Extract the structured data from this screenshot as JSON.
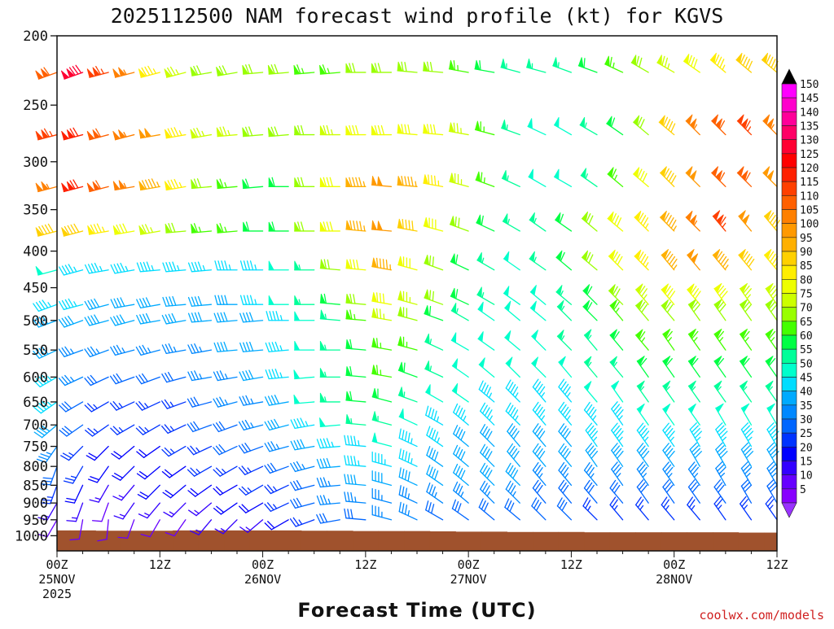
{
  "chart_data": {
    "type": "wind-barb profile",
    "title": "2025112500 NAM forecast wind profile (kt) for KGVS",
    "xlabel": "Forecast Time (UTC)",
    "ylabel": "",
    "credit": "coolwx.com/models",
    "y_scale": "log-pressure (hPa), inverted",
    "ylim": [
      1050,
      200
    ],
    "y_ticks": [
      "200",
      "250",
      "300",
      "350",
      "400",
      "450",
      "500",
      "550",
      "600",
      "650",
      "700",
      "750",
      "800",
      "850",
      "900",
      "950",
      "1000"
    ],
    "x_range_hours": [
      0,
      84
    ],
    "x_ticks": [
      {
        "hour": 0,
        "lines": [
          "00Z",
          "25NOV",
          "2025"
        ]
      },
      {
        "hour": 12,
        "lines": [
          "12Z"
        ]
      },
      {
        "hour": 24,
        "lines": [
          "00Z",
          "26NOV"
        ]
      },
      {
        "hour": 36,
        "lines": [
          "12Z"
        ]
      },
      {
        "hour": 48,
        "lines": [
          "00Z",
          "27NOV"
        ]
      },
      {
        "hour": 60,
        "lines": [
          "12Z"
        ]
      },
      {
        "hour": 72,
        "lines": [
          "00Z",
          "28NOV"
        ]
      },
      {
        "hour": 84,
        "lines": [
          "12Z"
        ]
      }
    ],
    "colorbar": {
      "label_values": [
        150,
        145,
        140,
        135,
        130,
        125,
        120,
        115,
        110,
        105,
        100,
        95,
        90,
        85,
        80,
        75,
        70,
        65,
        60,
        55,
        50,
        45,
        40,
        35,
        30,
        25,
        20,
        15,
        10,
        5
      ],
      "colors": [
        "#ff00ff",
        "#ff00cc",
        "#ff0099",
        "#ff0066",
        "#ff0033",
        "#ff0000",
        "#ff2000",
        "#ff4000",
        "#ff6000",
        "#ff8000",
        "#ff9900",
        "#ffb000",
        "#ffd000",
        "#ffee00",
        "#eeff00",
        "#ccff00",
        "#99ff00",
        "#44ff00",
        "#00ff44",
        "#00ff99",
        "#00ffcc",
        "#00ddff",
        "#00aaff",
        "#0088ff",
        "#0066ff",
        "#0033ff",
        "#0000ff",
        "#3300ff",
        "#6600ff",
        "#8800ff"
      ],
      "top_arrow_color": "#000000",
      "bottom_arrow_color": "#9933ff"
    },
    "terrain_color": "#a0522d",
    "levels_hpa": [
      225,
      275,
      325,
      375,
      425,
      475,
      500,
      550,
      600,
      650,
      700,
      750,
      800,
      850,
      900,
      950
    ],
    "times_hours": [
      0,
      3,
      6,
      9,
      12,
      15,
      18,
      21,
      24,
      27,
      30,
      33,
      36,
      39,
      42,
      45,
      48,
      51,
      54,
      57,
      60,
      63,
      66,
      69,
      72,
      75,
      78,
      81,
      84
    ],
    "surface_pressure_by_time": [
      983,
      983,
      984,
      984,
      984,
      983,
      983,
      983,
      983,
      983,
      984,
      984,
      985,
      985,
      985,
      986,
      987,
      987,
      988,
      988,
      988,
      989,
      989,
      989,
      989,
      989,
      989,
      990,
      990
    ],
    "wind_from_dir_by_level": {
      "225": [
        250,
        250,
        255,
        255,
        255,
        255,
        260,
        260,
        265,
        265,
        265,
        265,
        270,
        270,
        275,
        275,
        280,
        280,
        285,
        285,
        290,
        290,
        295,
        300,
        300,
        305,
        310,
        310,
        310
      ],
      "275": [
        255,
        255,
        255,
        255,
        260,
        260,
        260,
        265,
        265,
        265,
        270,
        270,
        270,
        270,
        275,
        275,
        280,
        285,
        290,
        295,
        300,
        300,
        305,
        310,
        310,
        315,
        315,
        315,
        315
      ],
      "325": [
        255,
        255,
        255,
        260,
        260,
        260,
        265,
        265,
        265,
        270,
        270,
        270,
        270,
        275,
        275,
        280,
        285,
        290,
        295,
        300,
        300,
        305,
        310,
        310,
        315,
        315,
        315,
        315,
        315
      ],
      "375": [
        255,
        255,
        260,
        260,
        260,
        265,
        265,
        265,
        270,
        270,
        270,
        270,
        275,
        275,
        280,
        285,
        290,
        295,
        300,
        305,
        305,
        310,
        310,
        315,
        315,
        315,
        320,
        320,
        320
      ],
      "425": [
        255,
        255,
        260,
        260,
        265,
        265,
        265,
        270,
        270,
        270,
        270,
        275,
        275,
        280,
        285,
        290,
        295,
        300,
        305,
        305,
        310,
        310,
        315,
        315,
        320,
        320,
        320,
        320,
        320
      ],
      "475": [
        250,
        255,
        255,
        260,
        260,
        265,
        265,
        270,
        270,
        270,
        270,
        275,
        275,
        280,
        285,
        290,
        295,
        300,
        305,
        310,
        310,
        315,
        315,
        320,
        320,
        320,
        325,
        325,
        325
      ],
      "500": [
        250,
        250,
        255,
        255,
        260,
        260,
        265,
        265,
        265,
        270,
        270,
        275,
        275,
        280,
        285,
        290,
        300,
        305,
        310,
        310,
        315,
        315,
        320,
        320,
        320,
        325,
        325,
        325,
        325
      ],
      "550": [
        245,
        250,
        250,
        255,
        255,
        260,
        260,
        265,
        265,
        265,
        270,
        270,
        275,
        280,
        285,
        295,
        300,
        305,
        310,
        315,
        315,
        320,
        320,
        320,
        325,
        325,
        325,
        325,
        325
      ],
      "600": [
        240,
        245,
        245,
        250,
        250,
        255,
        260,
        260,
        260,
        265,
        265,
        270,
        275,
        280,
        290,
        295,
        305,
        310,
        315,
        315,
        320,
        320,
        320,
        325,
        325,
        325,
        325,
        325,
        325
      ],
      "650": [
        235,
        240,
        240,
        245,
        245,
        250,
        255,
        255,
        260,
        260,
        265,
        270,
        275,
        285,
        290,
        300,
        305,
        310,
        315,
        320,
        320,
        320,
        325,
        325,
        325,
        325,
        325,
        325,
        325
      ],
      "700": [
        230,
        235,
        235,
        240,
        240,
        245,
        250,
        250,
        255,
        255,
        260,
        265,
        275,
        285,
        295,
        300,
        310,
        315,
        315,
        320,
        320,
        320,
        325,
        325,
        325,
        325,
        330,
        330,
        330
      ],
      "750": [
        215,
        225,
        225,
        230,
        235,
        240,
        245,
        245,
        250,
        255,
        260,
        265,
        275,
        285,
        295,
        305,
        310,
        315,
        320,
        320,
        320,
        325,
        325,
        325,
        325,
        330,
        330,
        330,
        330
      ],
      "800": [
        200,
        210,
        215,
        225,
        230,
        235,
        240,
        240,
        245,
        250,
        255,
        265,
        275,
        285,
        295,
        305,
        310,
        315,
        320,
        320,
        320,
        325,
        325,
        325,
        325,
        330,
        330,
        330,
        330
      ],
      "850": [
        200,
        205,
        210,
        220,
        225,
        230,
        235,
        240,
        240,
        245,
        255,
        265,
        275,
        285,
        295,
        305,
        310,
        315,
        315,
        320,
        320,
        320,
        325,
        325,
        325,
        325,
        330,
        330,
        330
      ],
      "900": [
        210,
        200,
        200,
        215,
        220,
        225,
        230,
        235,
        240,
        245,
        255,
        265,
        275,
        285,
        295,
        305,
        310,
        315,
        315,
        320,
        320,
        320,
        320,
        325,
        325,
        325,
        325,
        330,
        330
      ],
      "950": [
        210,
        190,
        185,
        200,
        210,
        215,
        220,
        225,
        230,
        240,
        250,
        260,
        275,
        285,
        295,
        300,
        305,
        310,
        310,
        315,
        315,
        315,
        320,
        320,
        320,
        320,
        325,
        325,
        325
      ]
    },
    "wind_speed_kt_by_level": {
      "225": [
        110,
        130,
        115,
        105,
        85,
        75,
        70,
        70,
        70,
        70,
        65,
        65,
        70,
        70,
        70,
        70,
        65,
        60,
        55,
        55,
        55,
        60,
        65,
        70,
        75,
        80,
        85,
        90,
        90
      ],
      "275": [
        115,
        120,
        110,
        105,
        100,
        85,
        75,
        75,
        70,
        70,
        70,
        75,
        80,
        80,
        80,
        80,
        75,
        65,
        55,
        50,
        50,
        55,
        60,
        70,
        90,
        105,
        110,
        115,
        105
      ],
      "325": [
        105,
        120,
        110,
        105,
        95,
        85,
        70,
        65,
        60,
        60,
        70,
        80,
        95,
        100,
        95,
        85,
        75,
        65,
        55,
        50,
        50,
        55,
        65,
        80,
        90,
        100,
        110,
        110,
        100
      ],
      "375": [
        90,
        90,
        85,
        80,
        75,
        70,
        65,
        65,
        60,
        60,
        70,
        80,
        95,
        100,
        90,
        80,
        70,
        60,
        55,
        55,
        60,
        70,
        80,
        85,
        95,
        105,
        115,
        100,
        90
      ],
      "425": [
        50,
        45,
        45,
        45,
        45,
        45,
        45,
        45,
        45,
        50,
        55,
        70,
        80,
        95,
        80,
        70,
        60,
        55,
        50,
        55,
        60,
        70,
        80,
        85,
        95,
        100,
        95,
        90,
        85
      ],
      "475": [
        45,
        45,
        40,
        40,
        40,
        40,
        40,
        40,
        45,
        50,
        55,
        60,
        70,
        80,
        75,
        70,
        60,
        55,
        50,
        50,
        55,
        60,
        70,
        75,
        80,
        80,
        80,
        75,
        75
      ],
      "500": [
        40,
        40,
        40,
        40,
        40,
        40,
        40,
        40,
        40,
        45,
        50,
        55,
        65,
        75,
        70,
        60,
        55,
        50,
        50,
        50,
        55,
        60,
        65,
        70,
        70,
        70,
        70,
        70,
        70
      ],
      "550": [
        40,
        35,
        35,
        35,
        35,
        35,
        35,
        40,
        40,
        45,
        50,
        55,
        60,
        65,
        65,
        55,
        50,
        50,
        50,
        50,
        55,
        55,
        60,
        65,
        65,
        65,
        65,
        65,
        65
      ],
      "600": [
        45,
        35,
        30,
        30,
        30,
        30,
        35,
        35,
        40,
        45,
        50,
        55,
        60,
        65,
        60,
        55,
        50,
        50,
        50,
        50,
        50,
        55,
        55,
        60,
        60,
        60,
        60,
        60,
        60
      ],
      "650": [
        45,
        30,
        25,
        25,
        25,
        25,
        30,
        35,
        35,
        40,
        50,
        55,
        60,
        60,
        55,
        50,
        50,
        45,
        45,
        45,
        45,
        50,
        50,
        55,
        55,
        55,
        55,
        55,
        55
      ],
      "700": [
        40,
        30,
        25,
        25,
        25,
        25,
        30,
        30,
        35,
        40,
        45,
        50,
        55,
        55,
        50,
        45,
        45,
        45,
        45,
        45,
        45,
        45,
        45,
        50,
        50,
        50,
        50,
        50,
        50
      ],
      "750": [
        35,
        25,
        20,
        20,
        20,
        25,
        25,
        30,
        30,
        35,
        40,
        45,
        45,
        50,
        45,
        45,
        40,
        40,
        40,
        40,
        40,
        45,
        45,
        45,
        45,
        45,
        45,
        45,
        45
      ],
      "800": [
        30,
        25,
        20,
        20,
        20,
        20,
        25,
        25,
        25,
        30,
        35,
        40,
        45,
        45,
        45,
        40,
        40,
        40,
        40,
        40,
        40,
        40,
        40,
        40,
        40,
        40,
        40,
        40,
        40
      ],
      "850": [
        25,
        20,
        15,
        15,
        20,
        20,
        20,
        20,
        25,
        25,
        30,
        35,
        40,
        40,
        40,
        40,
        40,
        40,
        40,
        35,
        35,
        35,
        35,
        35,
        35,
        35,
        35,
        35,
        35
      ],
      "900": [
        15,
        15,
        10,
        15,
        15,
        15,
        15,
        20,
        20,
        25,
        30,
        35,
        35,
        35,
        35,
        35,
        35,
        35,
        35,
        30,
        30,
        30,
        30,
        30,
        30,
        30,
        30,
        30,
        30
      ],
      "950": [
        10,
        10,
        10,
        10,
        10,
        10,
        15,
        15,
        15,
        20,
        25,
        30,
        30,
        35,
        35,
        30,
        30,
        30,
        30,
        30,
        30,
        25,
        25,
        25,
        25,
        25,
        25,
        25,
        25
      ]
    }
  }
}
